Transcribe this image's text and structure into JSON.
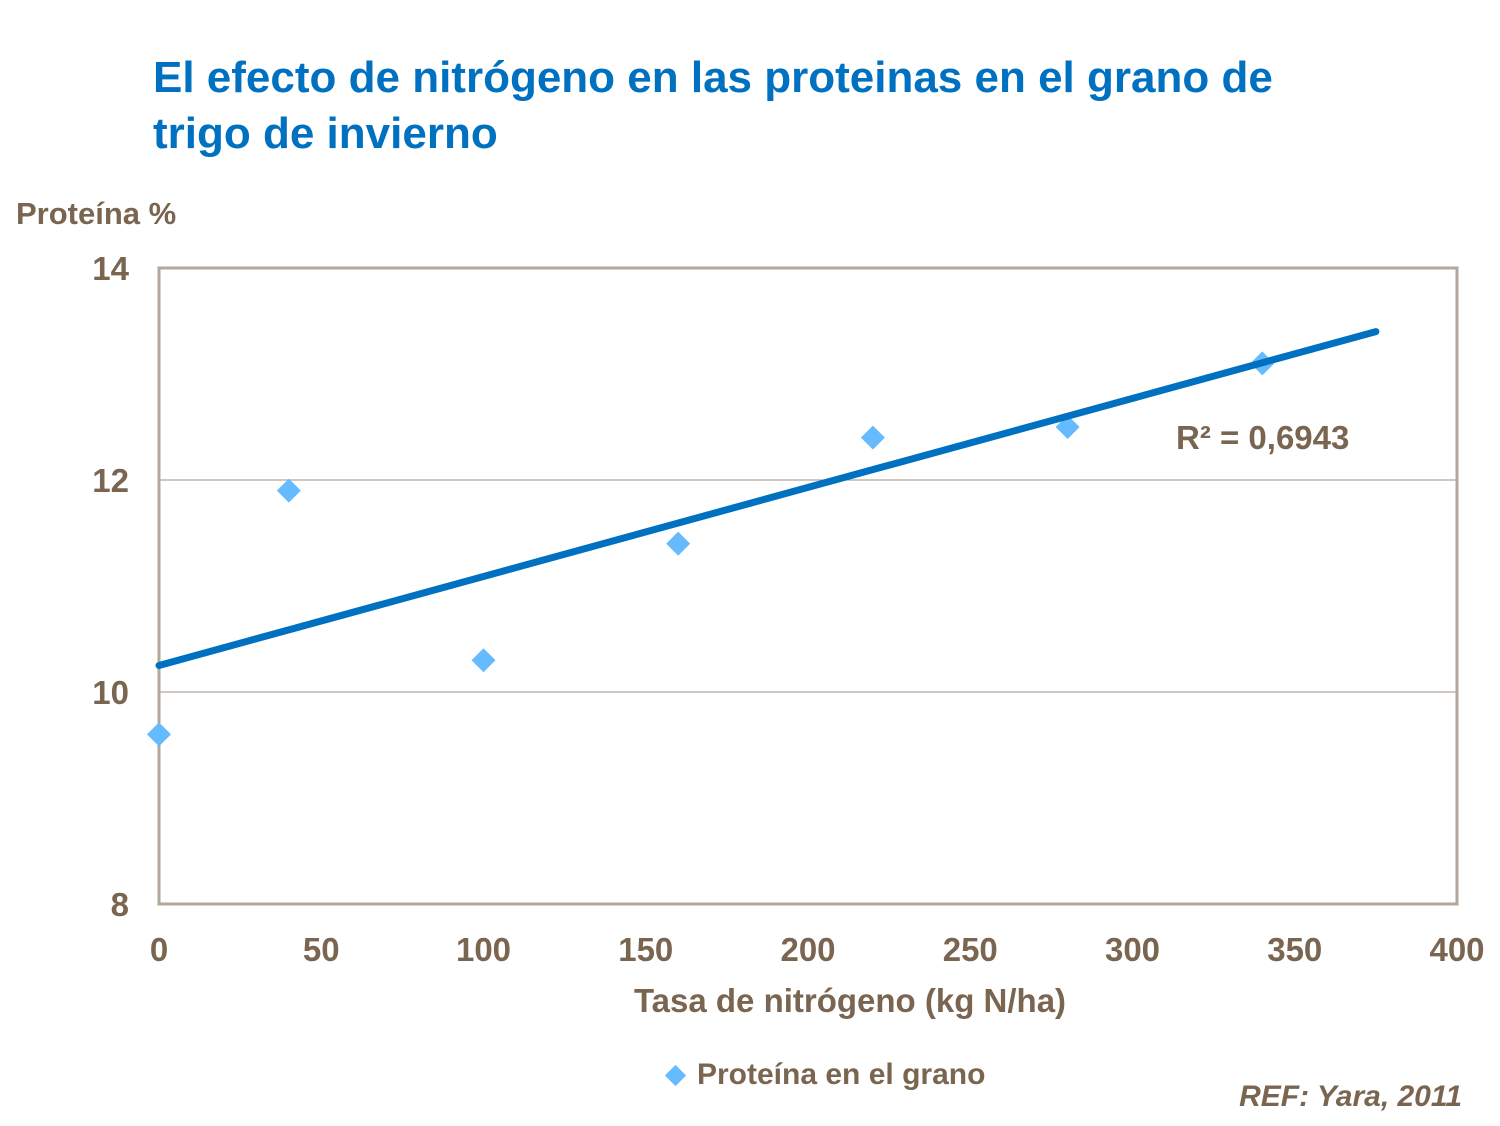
{
  "chart_data": {
    "type": "scatter",
    "title": "El efecto de nitrógeno en las proteinas en el grano de trigo de invierno",
    "xlabel": "Tasa de nitrógeno (kg N/ha)",
    "ylabel": "Proteína %",
    "xlim": [
      0,
      400
    ],
    "ylim": [
      8,
      14
    ],
    "xticks": [
      0,
      50,
      100,
      150,
      200,
      250,
      300,
      350,
      400
    ],
    "yticks": [
      8,
      10,
      12,
      14
    ],
    "grid": "horizontal",
    "legend_position": "bottom",
    "series": [
      {
        "name": "Proteína  en el grano",
        "marker": "diamond",
        "color": "#66BBFF",
        "x": [
          0,
          40,
          100,
          160,
          220,
          280,
          340
        ],
        "y": [
          9.6,
          11.9,
          10.3,
          11.4,
          12.4,
          12.5,
          13.1
        ]
      }
    ],
    "trendline": {
      "type": "linear",
      "color": "#0070C0",
      "x": [
        0,
        375
      ],
      "y": [
        10.25,
        13.4
      ],
      "label": "R² = 0,6943"
    },
    "reference": "REF: Yara, 2011"
  }
}
